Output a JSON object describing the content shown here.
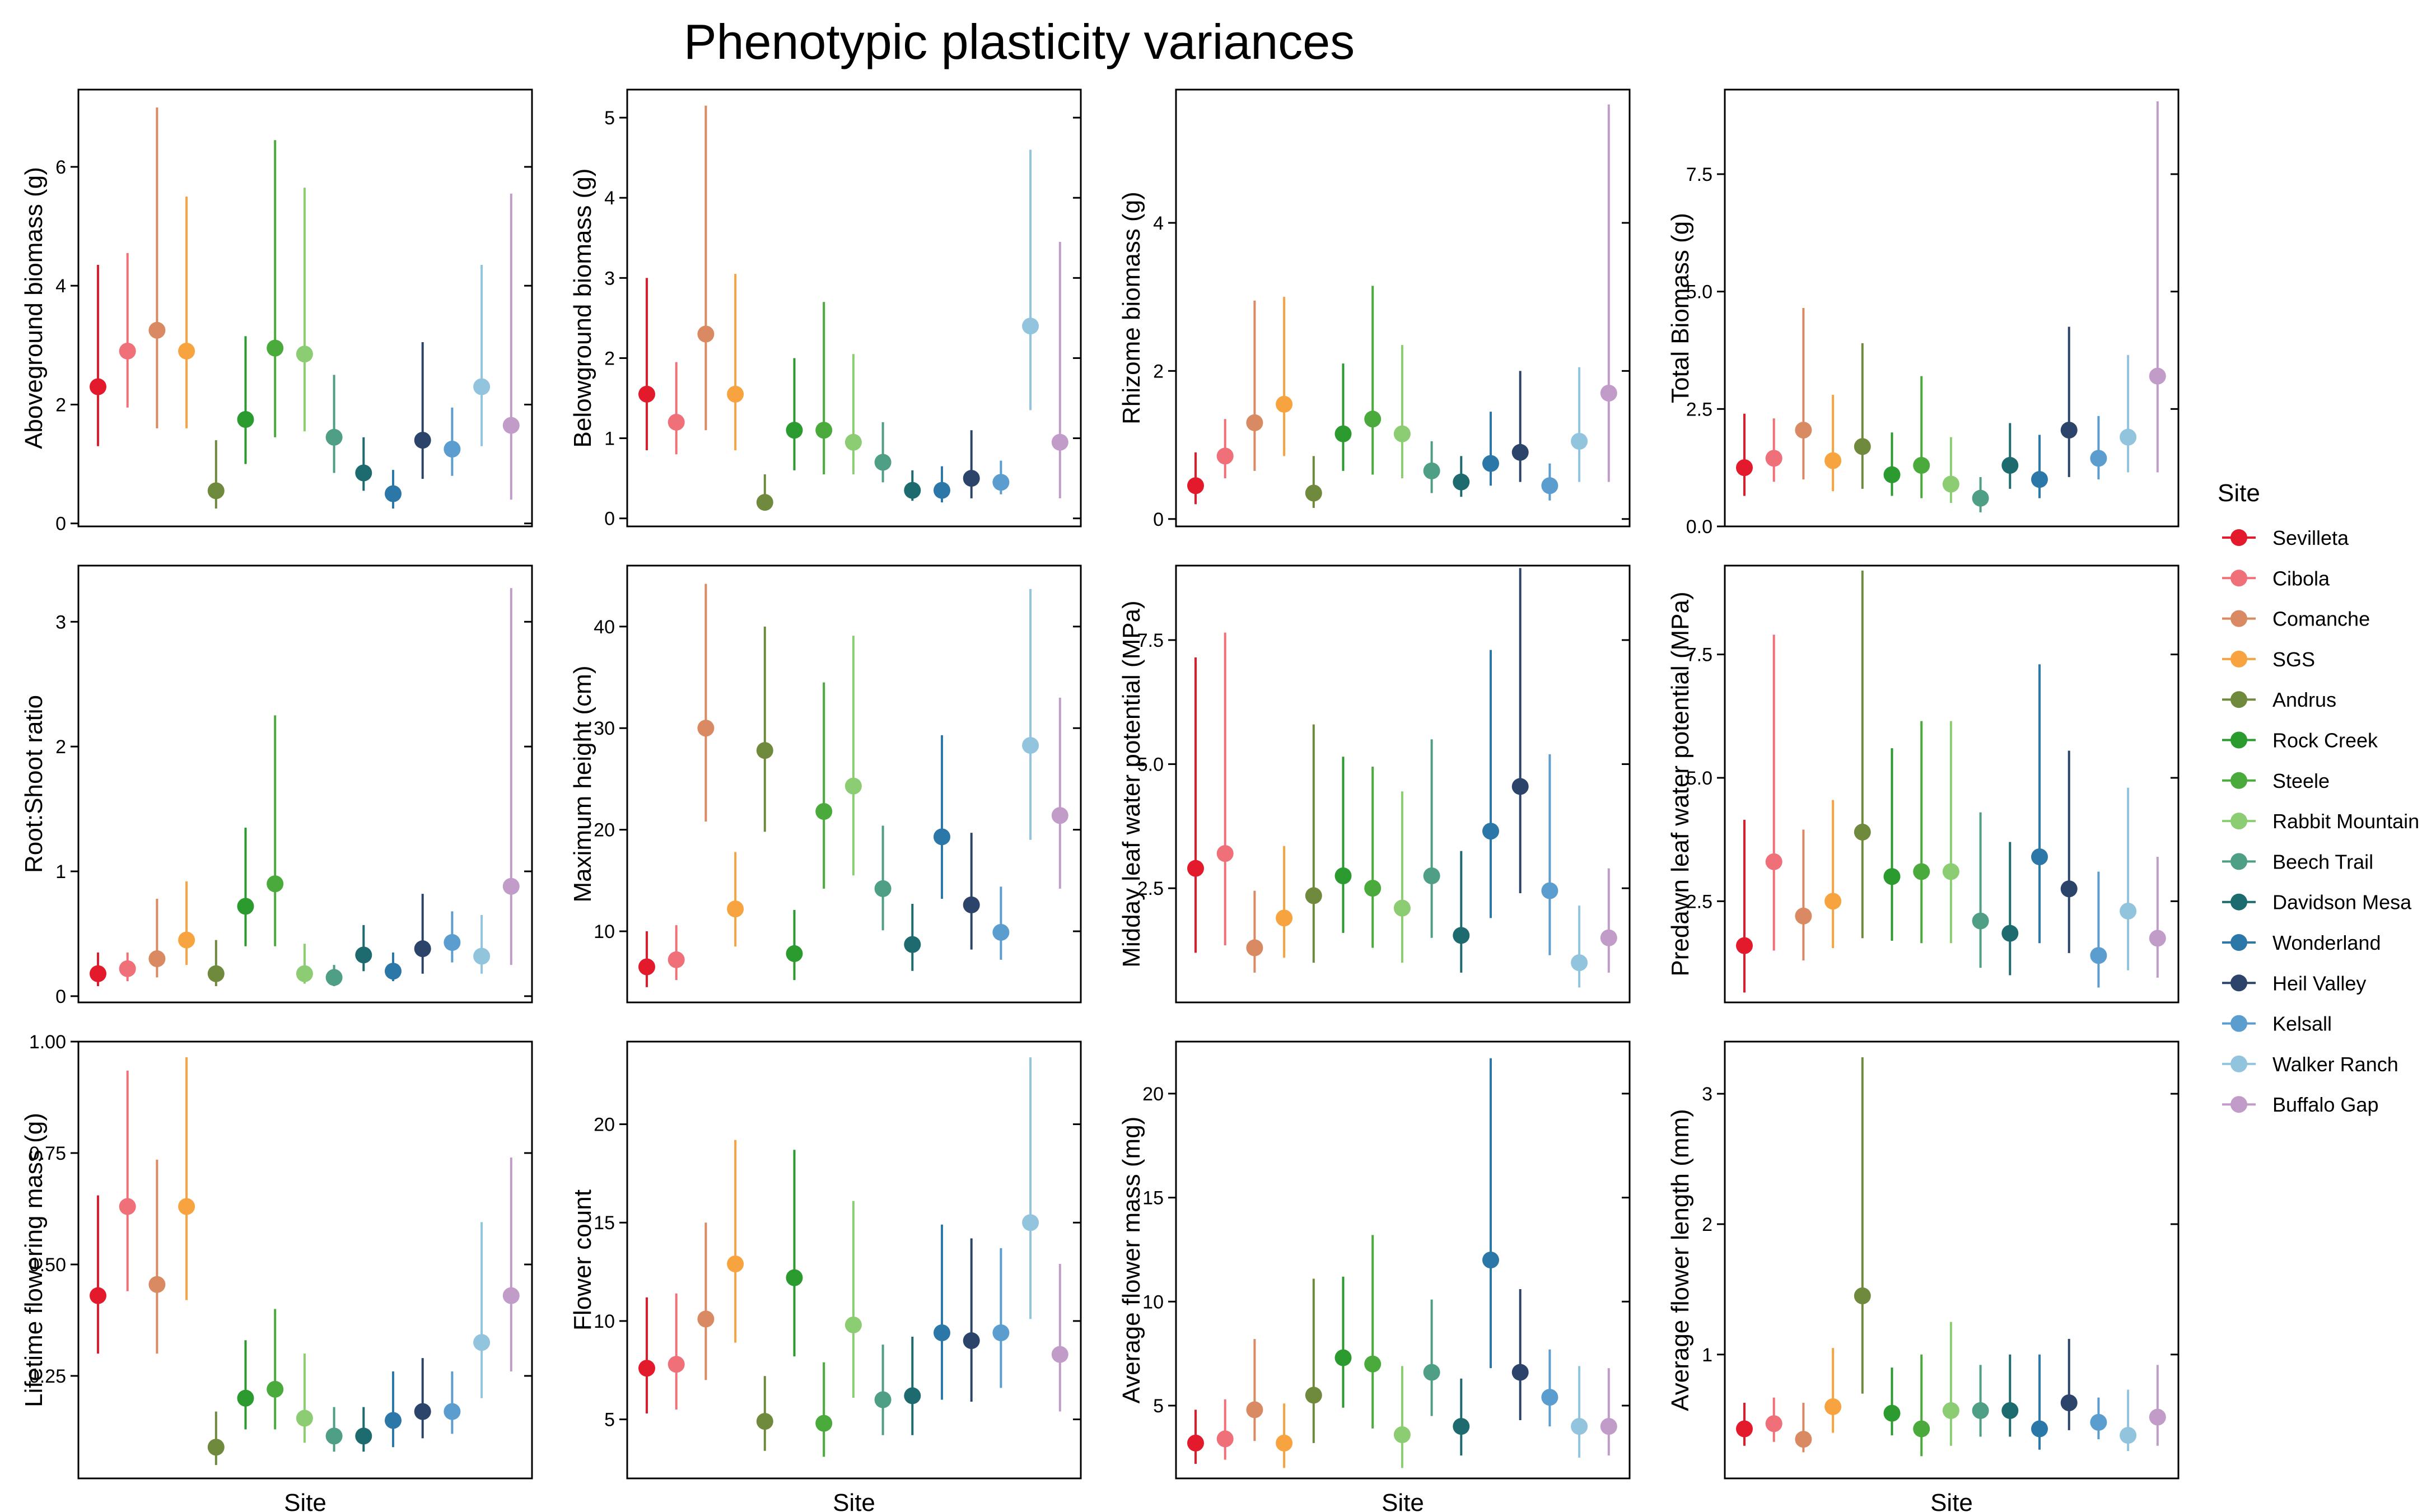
{
  "title": "Phenotypic plasticity variances",
  "legend": {
    "title": "Site",
    "placement": "right"
  },
  "sites": [
    {
      "name": "Sevilleta",
      "color": "#e31a2b"
    },
    {
      "name": "Cibola",
      "color": "#f0707a"
    },
    {
      "name": "Comanche",
      "color": "#d98a63"
    },
    {
      "name": "SGS",
      "color": "#f7a440"
    },
    {
      "name": "Andrus",
      "color": "#6f8a3d"
    },
    {
      "name": "Rock Creek",
      "color": "#2b9a2f"
    },
    {
      "name": "Steele",
      "color": "#4aaa3c"
    },
    {
      "name": "Rabbit Mountain",
      "color": "#8ccc72"
    },
    {
      "name": "Beech Trail",
      "color": "#4f9e86"
    },
    {
      "name": "Davidson Mesa",
      "color": "#1d6b6e"
    },
    {
      "name": "Wonderland",
      "color": "#2b78a8"
    },
    {
      "name": "Heil Valley",
      "color": "#2c4469"
    },
    {
      "name": "Kelsall",
      "color": "#5b9dcf"
    },
    {
      "name": "Walker Ranch",
      "color": "#93c4de"
    },
    {
      "name": "Buffalo Gap",
      "color": "#c29cc8"
    }
  ],
  "chart_data": [
    {
      "type": "scatter",
      "ylabel": "Aboveground biomass (g)",
      "xlabel": "",
      "ylim": [
        -0.05,
        7.3
      ],
      "yticks": [
        0,
        2,
        4,
        6
      ],
      "tick_labels": [
        "0",
        "2",
        "4",
        "6"
      ],
      "values": [
        2.3,
        2.9,
        3.25,
        2.9,
        0.55,
        1.75,
        2.95,
        2.85,
        1.45,
        0.85,
        0.5,
        1.4,
        1.25,
        2.3,
        1.65
      ],
      "lower": [
        1.3,
        1.95,
        1.6,
        1.6,
        0.25,
        1.0,
        1.45,
        1.55,
        0.85,
        0.55,
        0.25,
        0.75,
        0.8,
        1.3,
        0.4
      ],
      "upper": [
        4.35,
        4.55,
        7.0,
        5.5,
        1.4,
        3.15,
        6.45,
        5.65,
        2.5,
        1.45,
        0.9,
        3.05,
        1.95,
        4.35,
        5.55
      ]
    },
    {
      "type": "scatter",
      "ylabel": "Belowground biomass (g)",
      "xlabel": "",
      "ylim": [
        -0.1,
        5.35
      ],
      "yticks": [
        0,
        1,
        2,
        3,
        4,
        5
      ],
      "tick_labels": [
        "0",
        "1",
        "2",
        "3",
        "4",
        "5"
      ],
      "values": [
        1.55,
        1.2,
        2.3,
        1.55,
        0.2,
        1.1,
        1.1,
        0.95,
        0.7,
        0.35,
        0.35,
        0.5,
        0.45,
        2.4,
        0.95
      ],
      "lower": [
        0.85,
        0.8,
        1.1,
        0.85,
        0.1,
        0.6,
        0.55,
        0.55,
        0.45,
        0.22,
        0.2,
        0.25,
        0.3,
        1.35,
        0.25
      ],
      "upper": [
        3.0,
        1.95,
        5.15,
        3.05,
        0.55,
        2.0,
        2.7,
        2.05,
        1.2,
        0.6,
        0.65,
        1.1,
        0.72,
        4.6,
        3.45
      ]
    },
    {
      "type": "scatter",
      "ylabel": "Rhizome biomass (g)",
      "xlabel": "",
      "ylim": [
        -0.1,
        5.8
      ],
      "yticks": [
        0,
        2,
        4
      ],
      "tick_labels": [
        "0",
        "2",
        "4"
      ],
      "values": [
        0.45,
        0.85,
        1.3,
        1.55,
        0.35,
        1.15,
        1.35,
        1.15,
        0.65,
        0.5,
        0.75,
        0.9,
        0.45,
        1.05,
        1.7
      ],
      "lower": [
        0.2,
        0.55,
        0.65,
        0.85,
        0.15,
        0.65,
        0.6,
        0.55,
        0.35,
        0.3,
        0.45,
        0.5,
        0.25,
        0.5,
        0.5
      ],
      "upper": [
        0.9,
        1.35,
        2.95,
        3.0,
        0.85,
        2.1,
        3.15,
        2.35,
        1.05,
        0.85,
        1.45,
        2.0,
        0.75,
        2.05,
        5.6
      ]
    },
    {
      "type": "scatter",
      "ylabel": "Total Biomass (g)",
      "xlabel": "",
      "ylim": [
        0,
        9.3
      ],
      "yticks": [
        0,
        2.5,
        5,
        7.5
      ],
      "tick_labels": [
        "0.0",
        "2.5",
        "5.0",
        "7.5"
      ],
      "values": [
        1.25,
        1.45,
        2.05,
        1.4,
        1.7,
        1.1,
        1.3,
        0.9,
        0.6,
        1.3,
        1.0,
        2.05,
        1.45,
        1.9,
        3.2
      ],
      "lower": [
        0.65,
        0.95,
        1.0,
        0.75,
        0.8,
        0.65,
        0.6,
        0.5,
        0.3,
        0.8,
        0.6,
        1.05,
        1.0,
        1.15,
        1.15
      ],
      "upper": [
        2.4,
        2.3,
        4.65,
        2.8,
        3.9,
        2.0,
        3.2,
        1.9,
        1.05,
        2.2,
        1.95,
        4.25,
        2.35,
        3.65,
        9.05
      ]
    },
    {
      "type": "scatter",
      "ylabel": "Root:Shoot ratio",
      "xlabel": "",
      "ylim": [
        -0.05,
        3.45
      ],
      "yticks": [
        0,
        1,
        2,
        3
      ],
      "tick_labels": [
        "0",
        "1",
        "2",
        "3"
      ],
      "values": [
        0.18,
        0.22,
        0.3,
        0.45,
        0.18,
        0.72,
        0.9,
        0.18,
        0.15,
        0.33,
        0.2,
        0.38,
        0.43,
        0.32,
        0.88
      ],
      "lower": [
        0.08,
        0.12,
        0.15,
        0.25,
        0.08,
        0.4,
        0.4,
        0.1,
        0.08,
        0.2,
        0.12,
        0.18,
        0.27,
        0.18,
        0.25
      ],
      "upper": [
        0.35,
        0.35,
        0.78,
        0.92,
        0.45,
        1.35,
        2.25,
        0.42,
        0.25,
        0.57,
        0.35,
        0.82,
        0.68,
        0.65,
        3.27
      ]
    },
    {
      "type": "scatter",
      "ylabel": "Maximum height (cm)",
      "xlabel": "",
      "ylim": [
        3.0,
        46.0
      ],
      "yticks": [
        10,
        20,
        30,
        40
      ],
      "tick_labels": [
        "10",
        "20",
        "30",
        "40"
      ],
      "values": [
        6.5,
        7.2,
        30.0,
        12.2,
        27.8,
        7.8,
        21.8,
        24.3,
        14.2,
        8.7,
        19.3,
        12.6,
        9.9,
        28.3,
        21.4
      ],
      "lower": [
        4.5,
        5.2,
        20.8,
        8.5,
        19.8,
        5.2,
        14.2,
        15.5,
        10.1,
        6.1,
        13.2,
        8.2,
        7.2,
        19.0,
        14.2
      ],
      "upper": [
        10.0,
        10.6,
        44.2,
        17.8,
        40.0,
        12.1,
        34.5,
        39.1,
        20.4,
        12.7,
        29.3,
        19.7,
        14.4,
        43.7,
        33.0
      ]
    },
    {
      "type": "scatter",
      "ylabel": "Midday leaf water potential (MPa)",
      "xlabel": "",
      "ylim": [
        0.2,
        9.0
      ],
      "yticks": [
        2.5,
        5.0,
        7.5
      ],
      "tick_labels": [
        "2.5",
        "5.0",
        "7.5"
      ],
      "values": [
        2.9,
        3.2,
        1.3,
        1.9,
        2.35,
        2.75,
        2.5,
        2.1,
        2.75,
        1.55,
        3.65,
        4.55,
        2.45,
        1.0,
        1.5
      ],
      "lower": [
        1.2,
        1.35,
        0.8,
        1.1,
        1.0,
        1.6,
        1.3,
        1.0,
        1.5,
        0.8,
        1.9,
        2.4,
        1.15,
        0.5,
        0.8
      ],
      "upper": [
        7.15,
        7.65,
        2.45,
        3.35,
        5.8,
        5.15,
        4.95,
        4.45,
        5.5,
        3.25,
        7.3,
        8.95,
        5.2,
        2.15,
        2.9
      ]
    },
    {
      "type": "scatter",
      "ylabel": "Predawn leaf water potential (MPa)",
      "xlabel": "",
      "ylim": [
        0.45,
        9.3
      ],
      "yticks": [
        2.5,
        5.0,
        7.5
      ],
      "tick_labels": [
        "2.5",
        "5.0",
        "7.5"
      ],
      "values": [
        1.6,
        3.3,
        2.2,
        2.5,
        3.9,
        3.0,
        3.1,
        3.1,
        2.1,
        1.85,
        3.4,
        2.75,
        1.4,
        2.3,
        1.75
      ],
      "lower": [
        0.65,
        1.5,
        1.3,
        1.55,
        1.75,
        1.7,
        1.65,
        1.65,
        1.15,
        1.0,
        1.65,
        1.45,
        0.75,
        1.1,
        0.95
      ],
      "upper": [
        4.15,
        7.9,
        3.95,
        4.55,
        9.2,
        5.6,
        6.15,
        6.15,
        4.3,
        3.7,
        7.3,
        5.55,
        3.1,
        4.8,
        3.4
      ]
    },
    {
      "type": "scatter",
      "ylabel": "Lifetime flowering mass (g)",
      "xlabel": "Site",
      "ylim": [
        0.02,
        1.0
      ],
      "yticks": [
        0.25,
        0.5,
        0.75,
        1.0
      ],
      "tick_labels": [
        "0.25",
        "0.50",
        "0.75",
        "1.00"
      ],
      "values": [
        0.43,
        0.63,
        0.455,
        0.63,
        0.09,
        0.2,
        0.22,
        0.155,
        0.115,
        0.115,
        0.15,
        0.17,
        0.17,
        0.325,
        0.43
      ],
      "lower": [
        0.3,
        0.44,
        0.3,
        0.42,
        0.05,
        0.13,
        0.13,
        0.1,
        0.08,
        0.08,
        0.09,
        0.11,
        0.12,
        0.2,
        0.26
      ],
      "upper": [
        0.655,
        0.935,
        0.735,
        0.965,
        0.17,
        0.33,
        0.4,
        0.3,
        0.18,
        0.18,
        0.26,
        0.29,
        0.26,
        0.595,
        0.74
      ]
    },
    {
      "type": "scatter",
      "ylabel": "Flower count",
      "xlabel": "Site",
      "ylim": [
        2.0,
        24.2
      ],
      "yticks": [
        5,
        10,
        15,
        20
      ],
      "tick_labels": [
        "5",
        "10",
        "15",
        "20"
      ],
      "values": [
        7.6,
        7.8,
        10.1,
        12.9,
        4.9,
        12.2,
        4.8,
        9.8,
        6.0,
        6.2,
        9.4,
        9.0,
        9.4,
        15.0,
        8.3
      ],
      "lower": [
        5.3,
        5.5,
        7.0,
        8.9,
        3.4,
        8.2,
        3.1,
        6.1,
        4.2,
        4.2,
        6.0,
        5.9,
        6.6,
        10.1,
        5.4
      ],
      "upper": [
        11.2,
        11.4,
        15.0,
        19.2,
        7.2,
        18.7,
        7.9,
        16.1,
        8.8,
        9.2,
        14.9,
        14.2,
        13.7,
        23.4,
        12.9
      ]
    },
    {
      "type": "scatter",
      "ylabel": "Average flower mass (mg)",
      "xlabel": "Site",
      "ylim": [
        1.5,
        22.5
      ],
      "yticks": [
        5,
        10,
        15,
        20
      ],
      "tick_labels": [
        "5",
        "10",
        "15",
        "20"
      ],
      "values": [
        3.2,
        3.4,
        4.8,
        3.2,
        5.5,
        7.3,
        7.0,
        3.6,
        6.6,
        4.0,
        12.0,
        6.6,
        5.4,
        4.0,
        4.0
      ],
      "lower": [
        2.2,
        2.4,
        3.3,
        2.0,
        3.2,
        4.9,
        3.9,
        2.0,
        4.5,
        2.6,
        6.8,
        4.3,
        4.0,
        2.5,
        2.6
      ],
      "upper": [
        4.8,
        5.3,
        8.2,
        5.1,
        11.1,
        11.2,
        13.2,
        6.9,
        10.1,
        6.3,
        21.7,
        10.6,
        7.7,
        6.9,
        6.8
      ]
    },
    {
      "type": "scatter",
      "ylabel": "Average flower length (mm)",
      "xlabel": "Site",
      "ylim": [
        0.05,
        3.4
      ],
      "yticks": [
        1,
        2,
        3
      ],
      "tick_labels": [
        "1",
        "2",
        "3"
      ],
      "values": [
        0.43,
        0.47,
        0.35,
        0.6,
        1.45,
        0.55,
        0.43,
        0.57,
        0.57,
        0.57,
        0.43,
        0.63,
        0.48,
        0.38,
        0.52
      ],
      "lower": [
        0.3,
        0.33,
        0.25,
        0.4,
        0.7,
        0.38,
        0.22,
        0.3,
        0.37,
        0.37,
        0.27,
        0.42,
        0.35,
        0.26,
        0.3
      ],
      "upper": [
        0.63,
        0.67,
        0.63,
        1.05,
        3.28,
        0.9,
        1.0,
        1.25,
        0.92,
        1.0,
        1.0,
        1.12,
        0.67,
        0.73,
        0.92
      ]
    }
  ]
}
